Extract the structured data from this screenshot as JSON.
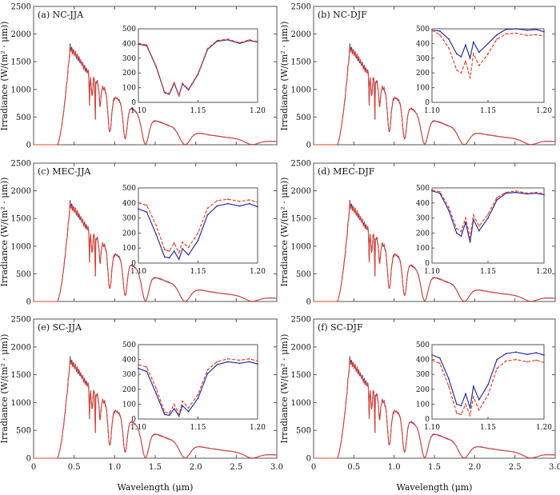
{
  "figure": {
    "xlabel": "Wavelength (μm)",
    "ylabel": "Irradiance (W/(m² · μm))"
  },
  "colors": {
    "blue": "#2b2fa3",
    "red": "#e8432a",
    "axis": "#555555"
  },
  "chart_data": [
    {
      "panel": "(a) NC-JJA",
      "type": "line",
      "xlim": [
        0,
        3.0
      ],
      "ylim": [
        0,
        2500
      ],
      "xticks": [
        0,
        0.5,
        1.0,
        1.5,
        2.0,
        2.5,
        3.0
      ],
      "xtick_labels": [
        "0",
        "0.5",
        "1.0",
        "1.5",
        "2.0",
        "2.5",
        "3.0"
      ],
      "yticks": [
        0,
        500,
        1000,
        1500,
        2000,
        2500
      ],
      "inset": {
        "xlim": [
          1.1,
          1.2
        ],
        "ylim": [
          0,
          500
        ],
        "xticks": [
          "1.10",
          "1.15",
          "1.20"
        ],
        "yticks": [
          0,
          100,
          200,
          300,
          400,
          500
        ],
        "x": [
          1.1,
          1.107,
          1.115,
          1.122,
          1.126,
          1.13,
          1.134,
          1.137,
          1.142,
          1.15,
          1.158,
          1.166,
          1.175,
          1.185,
          1.193,
          1.2
        ],
        "series": [
          {
            "name": "blue",
            "style": "solid",
            "values": [
              395,
              385,
              240,
              65,
              55,
              130,
              45,
              125,
              85,
              190,
              360,
              415,
              425,
              400,
              420,
              410
            ]
          },
          {
            "name": "red",
            "style": "dashed",
            "values": [
              400,
              390,
              245,
              70,
              60,
              135,
              48,
              130,
              90,
              195,
              365,
              420,
              430,
              405,
              425,
              412
            ]
          }
        ]
      }
    },
    {
      "panel": "(b) NC-DJF",
      "type": "line",
      "xlim": [
        0,
        3.0
      ],
      "ylim": [
        0,
        2500
      ],
      "xticks": [
        0,
        0.5,
        1.0,
        1.5,
        2.0,
        2.5,
        3.0
      ],
      "xtick_labels": [
        "0",
        "0.5",
        "1.0",
        "1.5",
        "2.0",
        "2.5",
        "3.0"
      ],
      "yticks": [
        0,
        500,
        1000,
        1500,
        2000,
        2500
      ],
      "inset": {
        "xlim": [
          1.1,
          1.2
        ],
        "ylim": [
          0,
          500
        ],
        "xticks": [
          "1.10",
          "1.15",
          "1.20"
        ],
        "yticks": [
          0,
          100,
          200,
          300,
          400,
          500
        ],
        "x": [
          1.1,
          1.107,
          1.115,
          1.122,
          1.126,
          1.13,
          1.134,
          1.137,
          1.142,
          1.15,
          1.158,
          1.166,
          1.175,
          1.185,
          1.193,
          1.2
        ],
        "series": [
          {
            "name": "blue",
            "style": "solid",
            "values": [
              490,
              485,
              430,
              330,
              310,
              390,
              300,
              410,
              340,
              400,
              460,
              495,
              500,
              490,
              495,
              480
            ]
          },
          {
            "name": "red",
            "style": "dashed",
            "values": [
              490,
              460,
              370,
              220,
              200,
              280,
              165,
              330,
              250,
              330,
              430,
              465,
              470,
              455,
              460,
              450
            ]
          }
        ]
      }
    },
    {
      "panel": "(c) MEC-JJA",
      "type": "line",
      "xlim": [
        0,
        3.0
      ],
      "ylim": [
        0,
        2500
      ],
      "xticks": [
        0,
        0.5,
        1.0,
        1.5,
        2.0,
        2.5,
        3.0
      ],
      "xtick_labels": [
        "0",
        "0.5",
        "1.0",
        "1.5",
        "2.0",
        "2.5",
        "3.0"
      ],
      "yticks": [
        0,
        500,
        1000,
        1500,
        2000,
        2500
      ],
      "inset": {
        "xlim": [
          1.1,
          1.2
        ],
        "ylim": [
          0,
          500
        ],
        "xticks": [
          "1.10",
          "1.15",
          "1.20"
        ],
        "yticks": [
          0,
          100,
          200,
          300,
          400,
          500
        ],
        "x": [
          1.1,
          1.107,
          1.115,
          1.122,
          1.126,
          1.13,
          1.134,
          1.137,
          1.142,
          1.15,
          1.158,
          1.166,
          1.175,
          1.185,
          1.193,
          1.2
        ],
        "series": [
          {
            "name": "blue",
            "style": "solid",
            "values": [
              360,
              340,
              190,
              40,
              35,
              80,
              25,
              95,
              55,
              150,
              320,
              380,
              395,
              380,
              395,
              375
            ]
          },
          {
            "name": "red",
            "style": "dashed",
            "values": [
              400,
              385,
              250,
              90,
              80,
              135,
              70,
              140,
              105,
              200,
              365,
              415,
              425,
              410,
              420,
              405
            ]
          }
        ]
      }
    },
    {
      "panel": "(d) MEC-DJF",
      "type": "line",
      "xlim": [
        0,
        3.0
      ],
      "ylim": [
        0,
        2500
      ],
      "xticks": [
        0,
        0.5,
        1.0,
        1.5,
        2.0,
        2.5,
        3.0
      ],
      "xtick_labels": [
        "0",
        "0.5",
        "1.0",
        "1.5",
        "2.0",
        "2.5",
        "3.0"
      ],
      "yticks": [
        0,
        500,
        1000,
        1500,
        2000,
        2500
      ],
      "inset": {
        "xlim": [
          1.1,
          1.2
        ],
        "ylim": [
          0,
          500
        ],
        "xticks": [
          "1.10",
          "1.15",
          "1.20"
        ],
        "yticks": [
          0,
          100,
          200,
          300,
          400,
          500
        ],
        "x": [
          1.1,
          1.107,
          1.115,
          1.122,
          1.126,
          1.13,
          1.134,
          1.137,
          1.142,
          1.15,
          1.158,
          1.166,
          1.175,
          1.185,
          1.193,
          1.2
        ],
        "series": [
          {
            "name": "blue",
            "style": "solid",
            "values": [
              480,
              465,
              350,
              200,
              180,
              270,
              140,
              290,
              215,
              300,
              420,
              465,
              470,
              460,
              465,
              455
            ]
          },
          {
            "name": "red",
            "style": "dashed",
            "values": [
              485,
              475,
              370,
              230,
              210,
              300,
              170,
              320,
              245,
              325,
              435,
              470,
              480,
              465,
              470,
              460
            ]
          }
        ]
      }
    },
    {
      "panel": "(e) SC-JJA",
      "type": "line",
      "xlim": [
        0,
        3.0
      ],
      "ylim": [
        0,
        2500
      ],
      "xticks": [
        0,
        0.5,
        1.0,
        1.5,
        2.0,
        2.5,
        3.0
      ],
      "xtick_labels": [
        "0",
        "0.5",
        "1.0",
        "1.5",
        "2.0",
        "2.5",
        "3.0"
      ],
      "yticks": [
        0,
        500,
        1000,
        1500,
        2000,
        2500
      ],
      "inset": {
        "xlim": [
          1.1,
          1.2
        ],
        "ylim": [
          0,
          500
        ],
        "xticks": [
          "1.10",
          "1.15",
          "1.20"
        ],
        "yticks": [
          0,
          100,
          200,
          300,
          400,
          500
        ],
        "x": [
          1.1,
          1.107,
          1.115,
          1.122,
          1.126,
          1.13,
          1.134,
          1.137,
          1.142,
          1.15,
          1.158,
          1.166,
          1.175,
          1.185,
          1.193,
          1.2
        ],
        "series": [
          {
            "name": "blue",
            "style": "solid",
            "values": [
              340,
              320,
              170,
              30,
              25,
              70,
              20,
              90,
              50,
              140,
              305,
              365,
              385,
              375,
              385,
              370
            ]
          },
          {
            "name": "red",
            "style": "dashed",
            "values": [
              365,
              350,
              205,
              45,
              40,
              100,
              30,
              120,
              75,
              165,
              330,
              385,
              405,
              395,
              405,
              390
            ]
          }
        ]
      }
    },
    {
      "panel": "(f) SC-DJF",
      "type": "line",
      "xlim": [
        0,
        3.0
      ],
      "ylim": [
        0,
        2500
      ],
      "xticks": [
        0,
        0.5,
        1.0,
        1.5,
        2.0,
        2.5,
        3.0
      ],
      "xtick_labels": [
        "0",
        "0.5",
        "1.0",
        "1.5",
        "2.0",
        "2.5",
        "3.0"
      ],
      "yticks": [
        0,
        500,
        1000,
        1500,
        2000,
        2500
      ],
      "inset": {
        "xlim": [
          1.1,
          1.2
        ],
        "ylim": [
          0,
          500
        ],
        "xticks": [
          "1.10",
          "1.15",
          "1.20"
        ],
        "yticks": [
          0,
          100,
          200,
          300,
          400,
          500
        ],
        "x": [
          1.1,
          1.107,
          1.115,
          1.122,
          1.126,
          1.13,
          1.134,
          1.137,
          1.142,
          1.15,
          1.158,
          1.166,
          1.175,
          1.185,
          1.193,
          1.2
        ],
        "series": [
          {
            "name": "blue",
            "style": "solid",
            "values": [
              430,
              410,
              270,
              100,
              90,
              170,
              75,
              220,
              130,
              230,
              400,
              440,
              450,
              435,
              445,
              430
            ]
          },
          {
            "name": "red",
            "style": "dashed",
            "values": [
              395,
              375,
              220,
              40,
              30,
              100,
              25,
              150,
              60,
              160,
              340,
              390,
              400,
              385,
              395,
              380
            ]
          }
        ]
      }
    }
  ]
}
